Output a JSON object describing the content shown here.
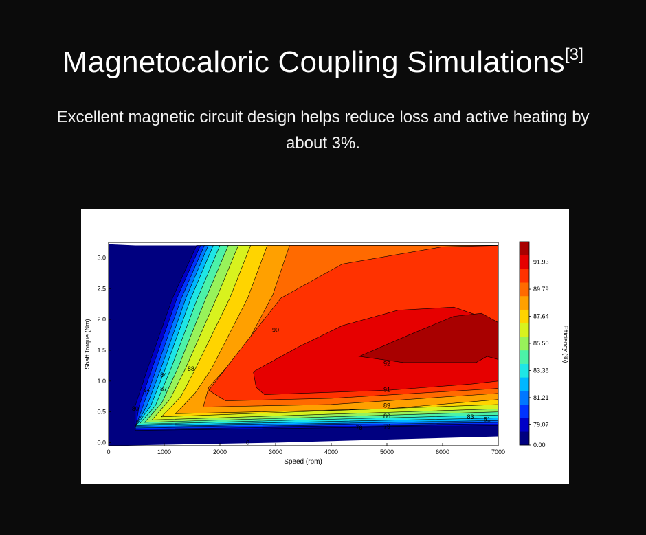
{
  "heading": {
    "title": "Magnetocaloric Coupling Simulations",
    "citation": "[3]",
    "subtitle": "Excellent magnetic circuit design helps reduce loss and active heating by about 3%."
  },
  "chart_data": {
    "type": "heatmap",
    "subtype": "filled-contour",
    "title": "",
    "xlabel": "Speed  (rpm)",
    "ylabel": "Shaft Torque  (Nm)",
    "colorbar_label": "Efficiency (%)",
    "xlim": [
      0,
      7000
    ],
    "ylim": [
      -0.05,
      3.25
    ],
    "xticks": [
      0,
      1000,
      2000,
      3000,
      4000,
      5000,
      6000,
      7000
    ],
    "yticks": [
      0.0,
      0.5,
      1.0,
      1.5,
      2.0,
      2.5,
      3.0
    ],
    "colorbar_ticks": [
      "0.00",
      "79.07",
      "81.21",
      "83.36",
      "85.50",
      "87.64",
      "89.79",
      "91.93"
    ],
    "colorbar_colors": [
      "#000080",
      "#0000c8",
      "#0033ff",
      "#0077ff",
      "#00b7ff",
      "#1ee6e6",
      "#4cf2a8",
      "#98f25a",
      "#d8f21e",
      "#ffd400",
      "#ffa000",
      "#ff6a00",
      "#ff3200",
      "#e60000",
      "#a80000"
    ],
    "grid": false,
    "legend": "colorbar-right",
    "background_level": "0.00",
    "bands": [
      {
        "level": 79,
        "color": "#0000c8",
        "points": [
          [
            480,
            0.2
          ],
          [
            7000,
            0.28
          ],
          [
            7000,
            3.2
          ],
          [
            1580,
            3.2
          ],
          [
            1150,
            2.35
          ],
          [
            700,
            1.2
          ],
          [
            480,
            0.6
          ]
        ]
      },
      {
        "level": 80,
        "color": "#0033ff",
        "points": [
          [
            480,
            0.22
          ],
          [
            7000,
            0.3
          ],
          [
            7000,
            3.2
          ],
          [
            1650,
            3.2
          ],
          [
            1230,
            2.35
          ],
          [
            780,
            1.2
          ],
          [
            550,
            0.6
          ]
        ]
      },
      {
        "level": 81,
        "color": "#0077ff",
        "points": [
          [
            480,
            0.24
          ],
          [
            7000,
            0.33
          ],
          [
            7000,
            3.2
          ],
          [
            1720,
            3.2
          ],
          [
            1310,
            2.35
          ],
          [
            860,
            1.2
          ],
          [
            620,
            0.6
          ]
        ]
      },
      {
        "level": 82,
        "color": "#00b7ff",
        "points": [
          [
            480,
            0.26
          ],
          [
            7000,
            0.36
          ],
          [
            7000,
            3.2
          ],
          [
            1790,
            3.2
          ],
          [
            1390,
            2.35
          ],
          [
            940,
            1.2
          ],
          [
            690,
            0.6
          ]
        ]
      },
      {
        "level": 83,
        "color": "#1ee6e6",
        "points": [
          [
            500,
            0.28
          ],
          [
            7000,
            0.4
          ],
          [
            7000,
            3.2
          ],
          [
            1880,
            3.2
          ],
          [
            1480,
            2.35
          ],
          [
            1020,
            1.2
          ],
          [
            760,
            0.6
          ]
        ]
      },
      {
        "level": 84,
        "color": "#4cf2a8",
        "points": [
          [
            550,
            0.3
          ],
          [
            7000,
            0.45
          ],
          [
            7000,
            3.2
          ],
          [
            2000,
            3.2
          ],
          [
            1600,
            2.35
          ],
          [
            1120,
            1.2
          ],
          [
            840,
            0.6
          ]
        ]
      },
      {
        "level": 85,
        "color": "#98f25a",
        "points": [
          [
            650,
            0.33
          ],
          [
            7000,
            0.5
          ],
          [
            7000,
            3.2
          ],
          [
            2150,
            3.2
          ],
          [
            1750,
            2.35
          ],
          [
            1240,
            1.2
          ],
          [
            960,
            0.65
          ]
        ]
      },
      {
        "level": 86,
        "color": "#d8f21e",
        "points": [
          [
            780,
            0.37
          ],
          [
            7000,
            0.55
          ],
          [
            7000,
            3.2
          ],
          [
            2330,
            3.2
          ],
          [
            1940,
            2.35
          ],
          [
            1380,
            1.2
          ],
          [
            1100,
            0.7
          ]
        ]
      },
      {
        "level": 87,
        "color": "#ffd400",
        "points": [
          [
            950,
            0.42
          ],
          [
            7000,
            0.62
          ],
          [
            7000,
            3.2
          ],
          [
            2550,
            3.2
          ],
          [
            2180,
            2.35
          ],
          [
            1560,
            1.2
          ],
          [
            1300,
            0.75
          ]
        ]
      },
      {
        "level": 88,
        "color": "#ffa000",
        "points": [
          [
            1200,
            0.47
          ],
          [
            5000,
            0.55
          ],
          [
            7000,
            0.7
          ],
          [
            7000,
            3.2
          ],
          [
            2850,
            3.2
          ],
          [
            2500,
            2.35
          ],
          [
            1850,
            1.2
          ],
          [
            1550,
            0.8
          ]
        ]
      },
      {
        "level": 89,
        "color": "#ff6a00",
        "points": [
          [
            1700,
            0.58
          ],
          [
            4000,
            0.62
          ],
          [
            7000,
            0.8
          ],
          [
            7000,
            3.2
          ],
          [
            3250,
            3.2
          ],
          [
            2950,
            2.4
          ],
          [
            2450,
            1.55
          ],
          [
            1800,
            0.9
          ]
        ]
      },
      {
        "level": 90,
        "color": "#ff3200",
        "points": [
          [
            2100,
            0.68
          ],
          [
            4000,
            0.72
          ],
          [
            7000,
            0.88
          ],
          [
            7000,
            3.2
          ],
          [
            6000,
            3.18
          ],
          [
            4200,
            2.9
          ],
          [
            3100,
            2.35
          ],
          [
            2400,
            1.55
          ],
          [
            1800,
            0.85
          ]
        ]
      },
      {
        "level": 91,
        "color": "#e60000",
        "points": [
          [
            2800,
            0.78
          ],
          [
            5000,
            0.85
          ],
          [
            6500,
            0.95
          ],
          [
            7000,
            1.0
          ],
          [
            7000,
            1.95
          ],
          [
            6200,
            2.2
          ],
          [
            5200,
            2.15
          ],
          [
            4200,
            1.9
          ],
          [
            3400,
            1.55
          ],
          [
            2600,
            1.15
          ],
          [
            2650,
            0.9
          ]
        ]
      },
      {
        "level": 92,
        "color": "#a80000",
        "points": [
          [
            4500,
            1.4
          ],
          [
            5300,
            1.3
          ],
          [
            6600,
            1.3
          ],
          [
            6800,
            1.4
          ],
          [
            7000,
            1.35
          ],
          [
            7000,
            1.95
          ],
          [
            6700,
            2.1
          ],
          [
            6200,
            2.05
          ],
          [
            5400,
            1.75
          ]
        ]
      }
    ],
    "contour_labels": [
      {
        "text": "90",
        "x": 3000,
        "y": 1.83
      },
      {
        "text": "88",
        "x": 1480,
        "y": 1.2
      },
      {
        "text": "84",
        "x": 990,
        "y": 1.1
      },
      {
        "text": "87",
        "x": 990,
        "y": 0.87
      },
      {
        "text": "82",
        "x": 680,
        "y": 0.82
      },
      {
        "text": "80",
        "x": 480,
        "y": 0.55
      },
      {
        "text": "92",
        "x": 5000,
        "y": 1.28
      },
      {
        "text": "91",
        "x": 5000,
        "y": 0.86
      },
      {
        "text": "89",
        "x": 5000,
        "y": 0.6
      },
      {
        "text": "86",
        "x": 5000,
        "y": 0.43
      },
      {
        "text": "83",
        "x": 6500,
        "y": 0.42
      },
      {
        "text": "81",
        "x": 6800,
        "y": 0.38
      },
      {
        "text": "79",
        "x": 5000,
        "y": 0.26
      },
      {
        "text": "78",
        "x": 4500,
        "y": 0.24
      },
      {
        "text": "0",
        "x": 2500,
        "y": 0.0
      }
    ]
  }
}
